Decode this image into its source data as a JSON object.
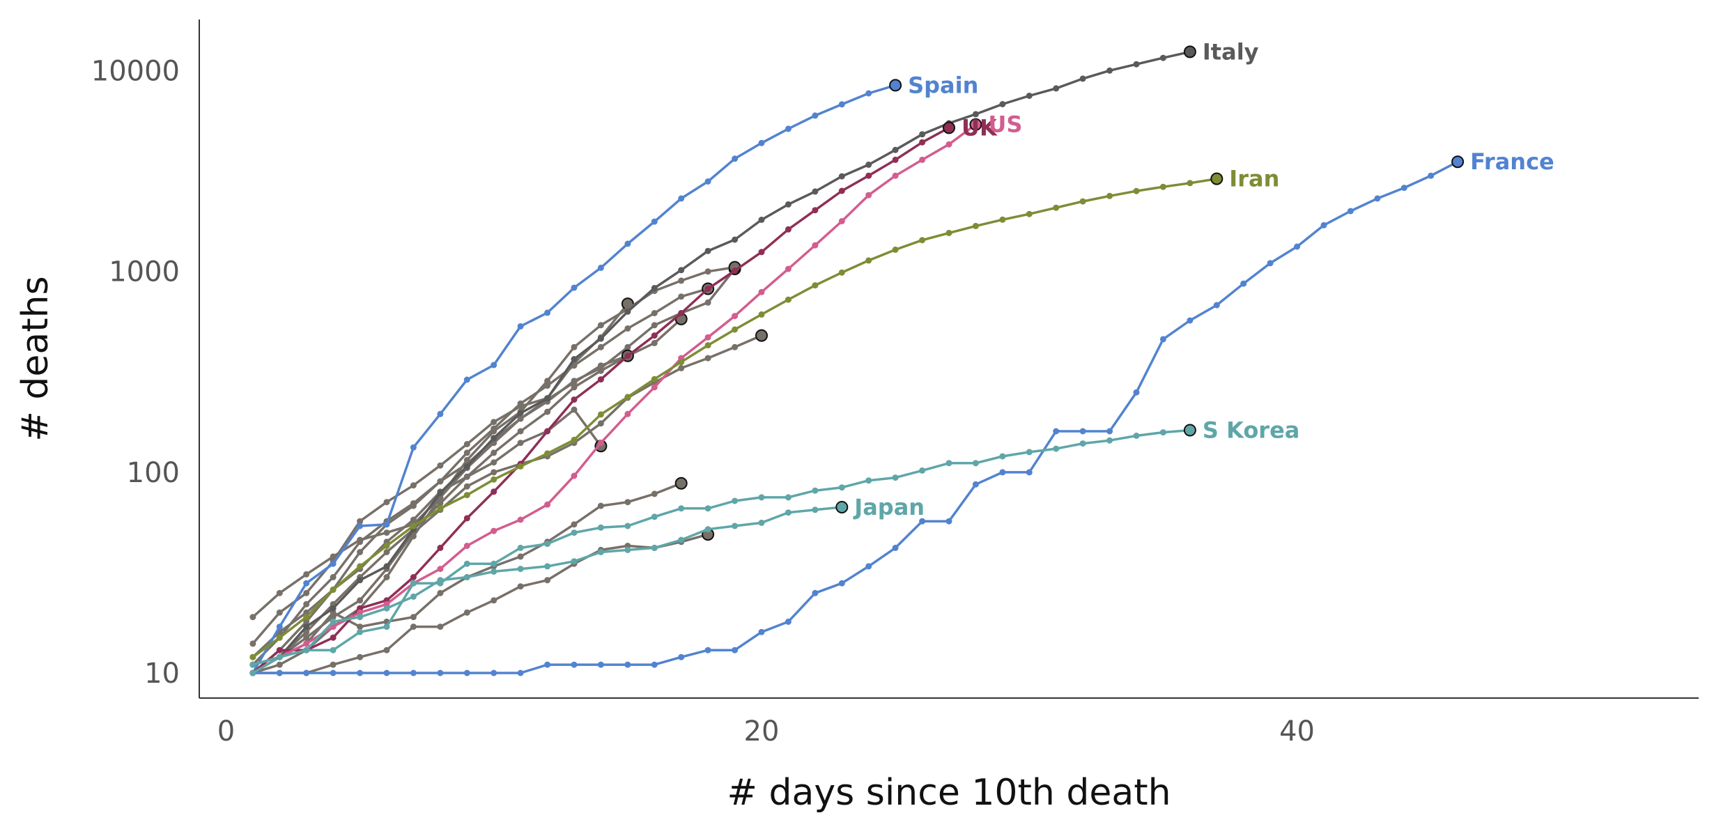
{
  "chart_data": {
    "type": "line",
    "title": "",
    "xlabel": "# days since 10th death",
    "ylabel": "# deaths",
    "xlim": [
      -1,
      55
    ],
    "ylim": [
      7.5,
      18000
    ],
    "yscale": "log",
    "xticks": [
      0,
      20,
      40
    ],
    "xtick_labels": [
      "0",
      "20",
      "40"
    ],
    "yticks": [
      10,
      100,
      1000,
      10000
    ],
    "ytick_labels": [
      "10",
      "100",
      "1000",
      "10000"
    ],
    "grid": false,
    "legend": "direct labels at line ends",
    "series": [
      {
        "name": "",
        "color": "#777069",
        "x": [
          1,
          2,
          3,
          4,
          5,
          6,
          7,
          8,
          9,
          10,
          11,
          12,
          13,
          14,
          15,
          16,
          17,
          18
        ],
        "y": [
          10,
          10,
          10,
          11,
          12,
          13,
          17,
          17,
          20,
          23,
          27,
          29,
          35,
          41,
          43,
          42,
          45,
          49
        ]
      },
      {
        "name": "",
        "color": "#777069",
        "x": [
          1,
          2,
          3,
          4,
          5,
          6,
          7,
          8,
          9,
          10,
          11,
          12,
          13,
          14,
          15,
          16,
          17
        ],
        "y": [
          10,
          12,
          14,
          20,
          17,
          18,
          19,
          25,
          30,
          34,
          38,
          45,
          55,
          68,
          71,
          78,
          88
        ]
      },
      {
        "name": "",
        "color": "#777069",
        "x": [
          1,
          2,
          3,
          4,
          5,
          6,
          7,
          8,
          9,
          10,
          11,
          12,
          13,
          14
        ],
        "y": [
          12,
          16,
          20,
          26,
          33,
          45,
          58,
          80,
          95,
          112,
          140,
          160,
          205,
          135
        ]
      },
      {
        "name": "",
        "color": "#777069",
        "x": [
          1,
          2,
          3,
          4,
          5,
          6,
          7,
          8,
          9,
          10,
          11,
          12,
          13,
          14,
          15,
          16,
          17,
          18,
          19,
          20
        ],
        "y": [
          11,
          12,
          15,
          19,
          23,
          33,
          50,
          65,
          85,
          100,
          110,
          120,
          140,
          175,
          235,
          280,
          330,
          370,
          420,
          480
        ]
      },
      {
        "name": "",
        "color": "#777069",
        "x": [
          1,
          2,
          3,
          4,
          5,
          6,
          7,
          8,
          9,
          10,
          11,
          12,
          13,
          14,
          15,
          16,
          17
        ],
        "y": [
          10,
          13,
          18,
          26,
          40,
          55,
          68,
          90,
          110,
          145,
          185,
          230,
          280,
          340,
          380,
          440,
          580
        ]
      },
      {
        "name": "",
        "color": "#777069",
        "x": [
          1,
          2,
          3,
          4,
          5,
          6,
          7,
          8,
          9,
          10,
          11,
          12,
          13,
          14,
          15
        ],
        "y": [
          14,
          20,
          25,
          36,
          57,
          71,
          86,
          108,
          138,
          178,
          213,
          234,
          350,
          470,
          690
        ]
      },
      {
        "name": "",
        "color": "#777069",
        "x": [
          1,
          2,
          3,
          4,
          5,
          6,
          7,
          8,
          9,
          10,
          11,
          12,
          13,
          14,
          15,
          16,
          17,
          18,
          19
        ],
        "y": [
          19,
          25,
          31,
          38,
          46,
          50,
          55,
          75,
          105,
          140,
          185,
          225,
          285,
          330,
          420,
          540,
          620,
          700,
          1030
        ]
      },
      {
        "name": "",
        "color": "#777069",
        "x": [
          1,
          2,
          3,
          4,
          5,
          6,
          7,
          8,
          9,
          10,
          11,
          12,
          13,
          14,
          15
        ],
        "y": [
          10,
          12,
          16,
          22,
          30,
          40,
          52,
          70,
          95,
          125,
          160,
          200,
          265,
          320,
          380
        ]
      },
      {
        "name": "",
        "color": "#777069",
        "x": [
          1,
          2,
          3,
          4,
          5,
          6,
          7,
          8,
          9,
          10,
          11,
          12,
          13,
          14,
          15,
          16,
          17,
          18
        ],
        "y": [
          11,
          15,
          22,
          30,
          45,
          57,
          70,
          90,
          125,
          165,
          220,
          270,
          340,
          420,
          520,
          620,
          750,
          820
        ]
      },
      {
        "name": "",
        "color": "#777069",
        "x": [
          1,
          2,
          3,
          4,
          5,
          6,
          7,
          8,
          9,
          10,
          11,
          12,
          13,
          14,
          15,
          16,
          17,
          18,
          19
        ],
        "y": [
          10,
          11,
          13,
          17,
          21,
          30,
          48,
          75,
          115,
          160,
          200,
          285,
          420,
          540,
          650,
          800,
          900,
          1000,
          1050
        ]
      },
      {
        "name": "Spain",
        "color": "#5283d0",
        "x": [
          1,
          2,
          3,
          4,
          5,
          6,
          7,
          8,
          9,
          10,
          11,
          12,
          13,
          14,
          15,
          16,
          17,
          18,
          19,
          20,
          21,
          22,
          23,
          24,
          25
        ],
        "y": [
          10,
          17,
          28,
          35,
          54,
          55,
          133,
          195,
          289,
          342,
          533,
          623,
          830,
          1043,
          1375,
          1772,
          2311,
          2808,
          3647,
          4365,
          5138,
          5982,
          6803,
          7716,
          8464
        ]
      },
      {
        "name": "Italy",
        "color": "#5a5a5a",
        "x": [
          1,
          2,
          3,
          4,
          5,
          6,
          7,
          8,
          9,
          10,
          11,
          12,
          13,
          14,
          15,
          16,
          17,
          18,
          19,
          20,
          21,
          22,
          23,
          24,
          25,
          26,
          27,
          28,
          29,
          30,
          31,
          32,
          33,
          34,
          35,
          36
        ],
        "y": [
          10,
          12,
          17,
          21,
          29,
          34,
          52,
          79,
          107,
          148,
          197,
          233,
          366,
          463,
          631,
          827,
          1016,
          1266,
          1441,
          1809,
          2158,
          2503,
          2978,
          3405,
          4032,
          4825,
          5476,
          6077,
          6820,
          7503,
          8165,
          9134,
          10023,
          10779,
          11591,
          12428
        ]
      },
      {
        "name": "UK",
        "color": "#8f2f55",
        "x": [
          1,
          2,
          3,
          4,
          5,
          6,
          7,
          8,
          9,
          10,
          11,
          12,
          13,
          14,
          15,
          16,
          17,
          18,
          19,
          20,
          21,
          22,
          23,
          24,
          25,
          26,
          27
        ],
        "y": [
          10,
          13,
          13,
          15,
          21,
          23,
          30,
          42,
          59,
          80,
          110,
          160,
          230,
          290,
          380,
          480,
          620,
          820,
          1010,
          1250,
          1620,
          2020,
          2520,
          3000,
          3600,
          4400,
          5200
        ]
      },
      {
        "name": "US",
        "color": "#d35d8e",
        "x": [
          1,
          2,
          3,
          4,
          5,
          6,
          7,
          8,
          9,
          10,
          11,
          12,
          13,
          14,
          15,
          16,
          17,
          18,
          19,
          20,
          21,
          22,
          23,
          24,
          25,
          26,
          27,
          28
        ],
        "y": [
          11,
          12,
          14,
          17,
          20,
          22,
          28,
          33,
          43,
          51,
          58,
          69,
          96,
          140,
          195,
          265,
          370,
          470,
          600,
          790,
          1030,
          1350,
          1780,
          2400,
          3000,
          3600,
          4300,
          5400
        ]
      },
      {
        "name": "Iran",
        "color": "#7d8d35",
        "x": [
          1,
          2,
          3,
          4,
          5,
          6,
          7,
          8,
          9,
          10,
          11,
          12,
          13,
          14,
          15,
          16,
          17,
          18,
          19,
          20,
          21,
          22,
          23,
          24,
          25,
          26,
          27,
          28,
          29,
          30,
          31,
          32,
          33,
          34,
          35,
          36,
          37
        ],
        "y": [
          12,
          15,
          19,
          26,
          34,
          43,
          54,
          66,
          77,
          92,
          107,
          124,
          145,
          194,
          237,
          291,
          354,
          429,
          514,
          611,
          724,
          853,
          988,
          1135,
          1284,
          1433,
          1556,
          1685,
          1812,
          1934,
          2077,
          2234,
          2378,
          2517,
          2640,
          2757,
          2898
        ]
      },
      {
        "name": "France",
        "color": "#5283d0",
        "x": [
          1,
          2,
          3,
          4,
          5,
          6,
          7,
          8,
          9,
          10,
          11,
          12,
          13,
          14,
          15,
          16,
          17,
          18,
          19,
          20,
          21,
          22,
          23,
          24,
          25,
          26,
          27,
          28,
          29,
          30,
          31,
          32,
          33,
          34,
          35,
          36,
          37,
          38,
          39,
          40,
          41,
          42,
          43,
          44,
          45,
          46
        ],
        "y": [
          10,
          10,
          10,
          10,
          10,
          10,
          10,
          10,
          10,
          10,
          10,
          11,
          11,
          11,
          11,
          11,
          12,
          13,
          13,
          16,
          18,
          25,
          28,
          34,
          42,
          57,
          57,
          87,
          100,
          100,
          160,
          160,
          160,
          250,
          460,
          570,
          680,
          870,
          1100,
          1330,
          1700,
          2000,
          2310,
          2610,
          3000,
          3520
        ]
      },
      {
        "name": "S Korea",
        "color": "#5fa6a8",
        "x": [
          1,
          2,
          3,
          4,
          5,
          6,
          7,
          8,
          9,
          10,
          11,
          12,
          13,
          14,
          15,
          16,
          17,
          18,
          19,
          20,
          21,
          22,
          23,
          24,
          25,
          26,
          27,
          28,
          29,
          30,
          31,
          32,
          33,
          34,
          35,
          36
        ],
        "y": [
          11,
          12,
          13,
          13,
          16,
          17,
          28,
          28,
          35,
          35,
          42,
          44,
          50,
          53,
          54,
          60,
          66,
          66,
          72,
          75,
          75,
          81,
          84,
          91,
          94,
          102,
          111,
          111,
          120,
          126,
          131,
          139,
          144,
          152,
          158,
          162
        ]
      },
      {
        "name": "Japan",
        "color": "#5fa6a8",
        "x": [
          1,
          2,
          3,
          4,
          5,
          6,
          7,
          8,
          9,
          10,
          11,
          12,
          13,
          14,
          15,
          16,
          17,
          18,
          19,
          20,
          21,
          22,
          23
        ],
        "y": [
          10,
          12,
          13,
          18,
          19,
          21,
          24,
          29,
          30,
          32,
          33,
          34,
          36,
          40,
          41,
          42,
          46,
          52,
          54,
          56,
          63,
          65,
          67
        ]
      }
    ]
  }
}
